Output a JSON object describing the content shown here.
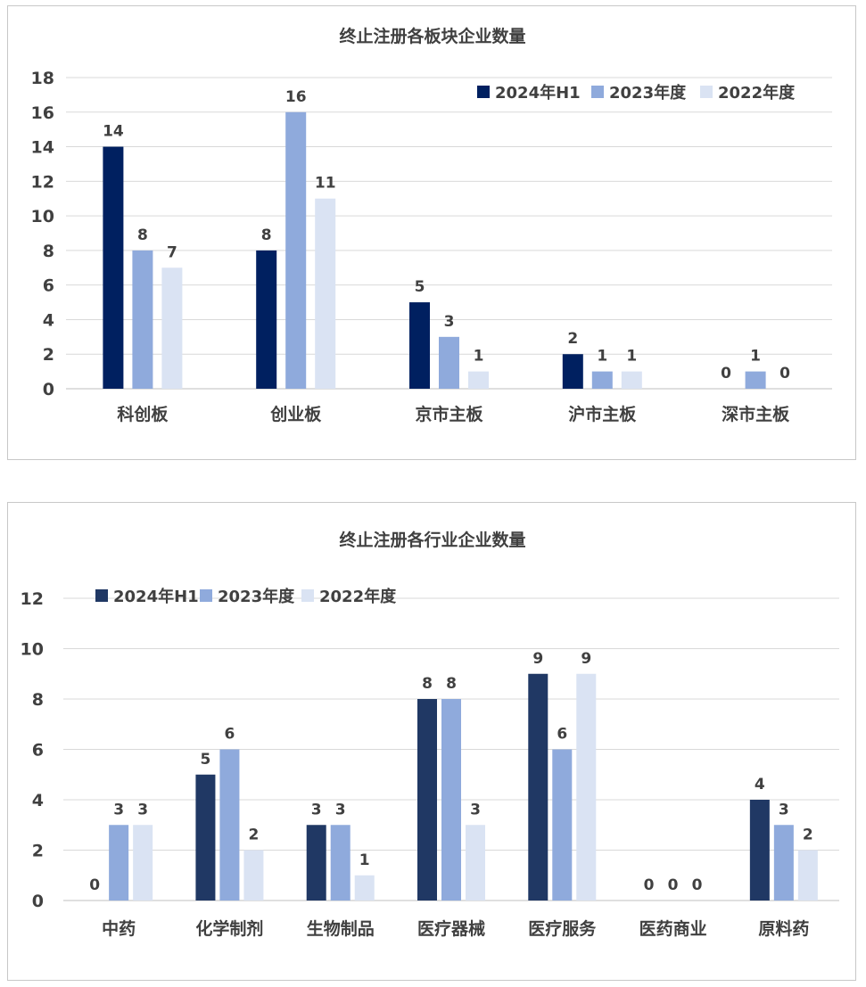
{
  "chart_data": [
    {
      "type": "bar",
      "title": "终止注册各板块企业数量",
      "categories": [
        "科创板",
        "创业板",
        "京市主板",
        "沪市主板",
        "深市主板"
      ],
      "series": [
        {
          "name": "2024年H1",
          "color": "#002060",
          "values": [
            14,
            8,
            5,
            2,
            0
          ]
        },
        {
          "name": "2023年度",
          "color": "#8faadc",
          "values": [
            8,
            16,
            3,
            1,
            1
          ]
        },
        {
          "name": "2022年度",
          "color": "#dae3f3",
          "values": [
            7,
            11,
            1,
            1,
            0
          ]
        }
      ],
      "ylim": [
        0,
        18
      ],
      "yticks": [
        "0",
        "2",
        "4",
        "6",
        "8",
        "10",
        "12",
        "14",
        "16",
        "18"
      ],
      "grid": true,
      "legend": "top-right"
    },
    {
      "type": "bar",
      "title": "终止注册各行业企业数量",
      "categories": [
        "中药",
        "化学制剂",
        "生物制品",
        "医疗器械",
        "医疗服务",
        "医药商业",
        "原料药"
      ],
      "series": [
        {
          "name": "2024年H1",
          "color": "#203864",
          "values": [
            0,
            5,
            3,
            8,
            9,
            0,
            4
          ]
        },
        {
          "name": "2023年度",
          "color": "#8faadc",
          "values": [
            3,
            6,
            3,
            8,
            6,
            0,
            3
          ]
        },
        {
          "name": "2022年度",
          "color": "#dae3f3",
          "values": [
            3,
            2,
            1,
            3,
            9,
            0,
            2
          ]
        }
      ],
      "ylim": [
        0,
        12
      ],
      "yticks": [
        "0",
        "2",
        "4",
        "6",
        "8",
        "10",
        "12"
      ],
      "grid": true,
      "legend": "top-left"
    }
  ]
}
